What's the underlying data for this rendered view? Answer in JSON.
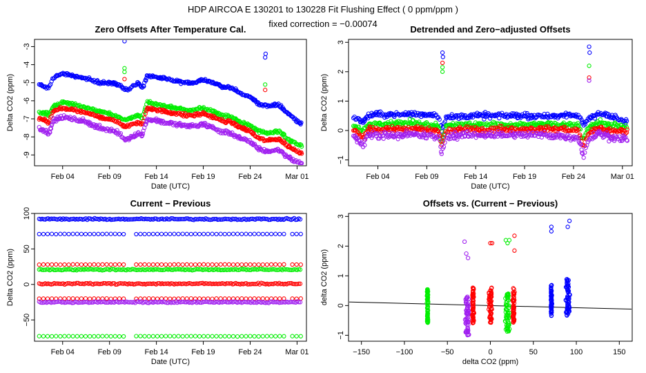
{
  "header": {
    "title": "HDP    AIRCOA E    130201 to 130228    Fit Flushing Effect ( 0 ppm/ppm )",
    "subtitle": "fixed correction = −0.00074"
  },
  "colors": {
    "blue": "#0000ff",
    "green": "#00ee00",
    "red": "#ff0000",
    "purple": "#a020f0",
    "fit_line": "#000000"
  },
  "chart_data": [
    {
      "type": "scatter",
      "title": "Zero Offsets After Temperature Cal.",
      "xlabel": "Date (UTC)",
      "ylabel": "Delta CO2 (ppm)",
      "xlim": [
        0,
        29
      ],
      "ylim": [
        -9.6,
        -2.6
      ],
      "x_ticks": [
        3,
        8,
        13,
        18,
        23,
        28
      ],
      "x_tick_labels": [
        "Feb 04",
        "Feb 09",
        "Feb 14",
        "Feb 19",
        "Feb 24",
        "Mar 01"
      ],
      "y_ticks": [
        -9,
        -8,
        -7,
        -6,
        -5,
        -4,
        -3
      ],
      "y_tick_labels": [
        "-9",
        "-8",
        "-7",
        "-6",
        "-5",
        "-4",
        "-3"
      ],
      "x_range": [
        0.5,
        28.5
      ],
      "series": [
        {
          "name": "blue",
          "color": "#0000ff",
          "spread": 0.1,
          "x": [
            0.5,
            1.5,
            2.0,
            3.0,
            4.0,
            5.0,
            6.0,
            7.0,
            8.5,
            9.1,
            9.5,
            10.0,
            11.0,
            11.5,
            12.0,
            13.0,
            14.0,
            15.0,
            16.0,
            17.0,
            18.0,
            19.0,
            20.0,
            21.0,
            22.0,
            23.0,
            24.0,
            25.0,
            26.0,
            27.0,
            28.0,
            28.5
          ],
          "y": [
            -5.1,
            -5.3,
            -4.7,
            -4.5,
            -4.6,
            -4.7,
            -4.85,
            -5.0,
            -5.05,
            -5.1,
            -5.3,
            -5.4,
            -5.0,
            -5.3,
            -4.6,
            -4.7,
            -4.8,
            -4.9,
            -5.0,
            -5.0,
            -4.8,
            -5.0,
            -5.2,
            -5.3,
            -5.6,
            -5.8,
            -6.2,
            -6.3,
            -6.2,
            -6.7,
            -7.1,
            -7.3
          ]
        },
        {
          "name": "green",
          "color": "#00ee00",
          "spread": 0.12,
          "x": [
            0.5,
            1.5,
            2.0,
            3.0,
            4.0,
            5.0,
            6.0,
            7.0,
            8.5,
            9.1,
            9.5,
            10.0,
            11.0,
            11.5,
            12.0,
            13.0,
            14.0,
            15.0,
            16.0,
            17.0,
            18.0,
            19.0,
            20.0,
            21.0,
            22.0,
            23.0,
            24.0,
            25.0,
            26.0,
            27.0,
            28.0,
            28.5
          ],
          "y": [
            -6.6,
            -6.8,
            -6.3,
            -6.1,
            -6.2,
            -6.3,
            -6.45,
            -6.6,
            -6.8,
            -6.9,
            -7.1,
            -7.0,
            -6.8,
            -6.9,
            -6.1,
            -6.2,
            -6.3,
            -6.4,
            -6.5,
            -6.5,
            -6.4,
            -6.6,
            -6.8,
            -6.9,
            -7.2,
            -7.4,
            -7.7,
            -7.8,
            -7.7,
            -8.1,
            -8.4,
            -8.5
          ]
        },
        {
          "name": "red",
          "color": "#ff0000",
          "spread": 0.12,
          "x": [
            0.5,
            1.5,
            2.0,
            3.0,
            4.0,
            5.0,
            6.0,
            7.0,
            8.5,
            9.1,
            9.5,
            10.0,
            11.0,
            11.5,
            12.0,
            13.0,
            14.0,
            15.0,
            16.0,
            17.0,
            18.0,
            19.0,
            20.0,
            21.0,
            22.0,
            23.0,
            24.0,
            25.0,
            26.0,
            27.0,
            28.0,
            28.5
          ],
          "y": [
            -7.0,
            -7.2,
            -6.6,
            -6.4,
            -6.5,
            -6.6,
            -6.75,
            -6.9,
            -7.1,
            -7.2,
            -7.4,
            -7.4,
            -7.2,
            -7.3,
            -6.4,
            -6.5,
            -6.6,
            -6.7,
            -6.8,
            -6.8,
            -6.7,
            -6.9,
            -7.1,
            -7.2,
            -7.5,
            -7.7,
            -8.1,
            -8.2,
            -8.1,
            -8.5,
            -8.8,
            -8.9
          ]
        },
        {
          "name": "purple",
          "color": "#a020f0",
          "spread": 0.15,
          "x": [
            0.5,
            1.5,
            2.0,
            3.0,
            4.0,
            5.0,
            6.0,
            7.0,
            8.5,
            9.1,
            9.5,
            10.0,
            11.0,
            11.5,
            12.0,
            13.0,
            14.0,
            15.0,
            16.0,
            17.0,
            18.0,
            19.0,
            20.0,
            21.0,
            22.0,
            23.0,
            24.0,
            25.0,
            26.0,
            27.0,
            28.0,
            28.5
          ],
          "y": [
            -7.5,
            -7.8,
            -7.1,
            -6.9,
            -7.0,
            -7.1,
            -7.3,
            -7.5,
            -7.7,
            -7.8,
            -8.1,
            -8.1,
            -7.8,
            -7.9,
            -7.0,
            -7.1,
            -7.2,
            -7.3,
            -7.4,
            -7.4,
            -7.3,
            -7.5,
            -7.7,
            -7.8,
            -8.1,
            -8.3,
            -8.7,
            -8.8,
            -8.7,
            -9.1,
            -9.4,
            -9.5
          ]
        }
      ],
      "outliers": [
        {
          "series": "blue",
          "x": [
            9.6,
            9.65,
            24.6,
            24.65
          ],
          "y": [
            -2.7,
            -2.5,
            -3.6,
            -3.4
          ]
        },
        {
          "series": "green",
          "x": [
            9.6,
            9.6,
            24.6
          ],
          "y": [
            -4.2,
            -4.4,
            -5.1
          ]
        },
        {
          "series": "red",
          "x": [
            9.6,
            24.6
          ],
          "y": [
            -4.8,
            -5.4
          ]
        }
      ]
    },
    {
      "type": "scatter",
      "title": "Detrended and Zero−adjusted Offsets",
      "xlabel": "Date (UTC)",
      "ylabel": "Delta CO2 (ppm)",
      "xlim": [
        0,
        29
      ],
      "ylim": [
        -1.2,
        3.1
      ],
      "x_ticks": [
        3,
        8,
        13,
        18,
        23,
        28
      ],
      "x_tick_labels": [
        "Feb 04",
        "Feb 09",
        "Feb 14",
        "Feb 19",
        "Feb 24",
        "Mar 01"
      ],
      "y_ticks": [
        -1,
        0,
        1,
        2,
        3
      ],
      "y_tick_labels": [
        "−1",
        "0",
        "1",
        "2",
        "3"
      ],
      "x_range": [
        0.5,
        28.5
      ],
      "series": [
        {
          "name": "blue",
          "color": "#0000ff",
          "spread": 0.12,
          "x": [
            0.5,
            1.5,
            2.0,
            3.0,
            5.0,
            7.0,
            8.5,
            9.2,
            9.5,
            10.0,
            12.0,
            14.0,
            16.0,
            18.0,
            20.0,
            22.0,
            23.5,
            24.0,
            24.5,
            25.5,
            26.5,
            28.5
          ],
          "y": [
            0.45,
            0.3,
            0.5,
            0.55,
            0.55,
            0.55,
            0.55,
            0.5,
            0.05,
            0.45,
            0.5,
            0.5,
            0.5,
            0.5,
            0.5,
            0.5,
            0.5,
            0.2,
            0.4,
            0.6,
            0.5,
            0.3
          ]
        },
        {
          "name": "green",
          "color": "#00ee00",
          "spread": 0.12,
          "x": [
            0.5,
            1.5,
            2.0,
            3.0,
            5.0,
            7.0,
            8.5,
            9.2,
            9.5,
            10.0,
            12.0,
            14.0,
            16.0,
            18.0,
            20.0,
            22.0,
            23.5,
            24.0,
            24.5,
            25.5,
            26.5,
            28.5
          ],
          "y": [
            0.15,
            0.0,
            0.2,
            0.25,
            0.25,
            0.25,
            0.2,
            0.15,
            -0.4,
            0.2,
            0.2,
            0.2,
            0.2,
            0.2,
            0.2,
            0.2,
            0.15,
            -0.3,
            0.1,
            0.25,
            0.2,
            0.1
          ]
        },
        {
          "name": "red",
          "color": "#ff0000",
          "spread": 0.12,
          "x": [
            0.5,
            1.5,
            2.0,
            3.0,
            5.0,
            7.0,
            8.5,
            9.2,
            9.5,
            10.0,
            12.0,
            14.0,
            16.0,
            18.0,
            20.0,
            22.0,
            23.5,
            24.0,
            24.5,
            25.5,
            26.5,
            28.5
          ],
          "y": [
            0.0,
            -0.25,
            0.05,
            0.05,
            0.05,
            0.05,
            0.0,
            0.0,
            -0.5,
            0.0,
            0.05,
            0.05,
            0.05,
            0.05,
            0.05,
            0.05,
            0.0,
            -0.6,
            -0.1,
            0.1,
            0.0,
            -0.05
          ]
        },
        {
          "name": "purple",
          "color": "#a020f0",
          "spread": 0.15,
          "x": [
            0.5,
            1.5,
            2.0,
            3.0,
            5.0,
            7.0,
            8.5,
            9.2,
            9.5,
            10.0,
            12.0,
            14.0,
            16.0,
            18.0,
            20.0,
            22.0,
            23.5,
            24.0,
            24.5,
            25.5,
            26.5,
            28.5
          ],
          "y": [
            -0.2,
            -0.5,
            -0.15,
            -0.15,
            -0.15,
            -0.15,
            -0.2,
            -0.2,
            -0.8,
            -0.2,
            -0.15,
            -0.15,
            -0.15,
            -0.15,
            -0.15,
            -0.2,
            -0.25,
            -0.9,
            -0.3,
            -0.1,
            -0.2,
            -0.3
          ]
        }
      ],
      "outliers": [
        {
          "series": "blue",
          "x": [
            9.6,
            9.65,
            24.6,
            24.65
          ],
          "y": [
            2.65,
            2.5,
            2.85,
            2.65
          ]
        },
        {
          "series": "green",
          "x": [
            9.6,
            9.6,
            24.6
          ],
          "y": [
            2.0,
            2.15,
            2.2
          ]
        },
        {
          "series": "red",
          "x": [
            9.6,
            24.6
          ],
          "y": [
            2.3,
            1.8
          ]
        },
        {
          "series": "purple",
          "x": [
            24.6
          ],
          "y": [
            1.7
          ]
        }
      ]
    },
    {
      "type": "scatter",
      "title": "Current − Previous",
      "xlabel": "Date (UTC)",
      "ylabel": "Delta CO2 (ppm)",
      "xlim": [
        0,
        29
      ],
      "ylim": [
        -80,
        100
      ],
      "x_ticks": [
        3,
        8,
        13,
        18,
        23,
        28
      ],
      "x_tick_labels": [
        "Feb 04",
        "Feb 09",
        "Feb 14",
        "Feb 19",
        "Feb 24",
        "Mar 01"
      ],
      "y_ticks": [
        -50,
        0,
        50,
        100
      ],
      "y_tick_labels": [
        "−50",
        "0",
        "50",
        "100"
      ],
      "x_range": [
        0.5,
        28.5
      ],
      "series": [
        {
          "name": "blue",
          "color": "#0000ff",
          "level": 92,
          "jitter": 1.5
        },
        {
          "name": "blue",
          "color": "#0000ff",
          "level": 71,
          "jitter": 0.3,
          "sparse": true
        },
        {
          "name": "red",
          "color": "#ff0000",
          "level": 28,
          "jitter": 0.3,
          "sparse": true
        },
        {
          "name": "green",
          "color": "#00ee00",
          "level": 21,
          "jitter": 1.5
        },
        {
          "name": "red",
          "color": "#ff0000",
          "level": 1,
          "jitter": 1.5
        },
        {
          "name": "red",
          "color": "#ff0000",
          "level": -20,
          "jitter": 0.3,
          "sparse": true
        },
        {
          "name": "purple",
          "color": "#a020f0",
          "level": -25,
          "jitter": 1.5
        },
        {
          "name": "green",
          "color": "#00ee00",
          "level": -73,
          "jitter": 0.3,
          "sparse": true
        }
      ]
    },
    {
      "type": "scatter",
      "title": "Offsets vs. (Current − Previous)",
      "xlabel": "delta CO2 (ppm)",
      "ylabel": "delta CO2 (ppm)",
      "xlim": [
        -165,
        165
      ],
      "ylim": [
        -1.2,
        3.1
      ],
      "x_ticks": [
        -150,
        -100,
        -50,
        0,
        50,
        100,
        150
      ],
      "x_tick_labels": [
        "−150",
        "−100",
        "−50",
        "0",
        "50",
        "100",
        "150"
      ],
      "y_ticks": [
        -1,
        0,
        1,
        2,
        3
      ],
      "y_tick_labels": [
        "−1",
        "0",
        "1",
        "2",
        "3"
      ],
      "fit_line": {
        "x": [
          -165,
          165
        ],
        "y": [
          0.12,
          -0.12
        ]
      },
      "clusters": [
        {
          "color": "#00ee00",
          "x": -73,
          "y_min": -0.6,
          "y_max": 0.55,
          "width": 2
        },
        {
          "color": "#a020f0",
          "x": -27,
          "y_min": -1.0,
          "y_max": 0.3,
          "width": 6
        },
        {
          "color": "#ff0000",
          "x": -20,
          "y_min": -0.6,
          "y_max": 0.6,
          "width": 3
        },
        {
          "color": "#ff0000",
          "x": 0,
          "y_min": -0.6,
          "y_max": 0.6,
          "width": 5
        },
        {
          "color": "#00ee00",
          "x": 20,
          "y_min": -0.9,
          "y_max": 0.55,
          "width": 7
        },
        {
          "color": "#ff0000",
          "x": 27,
          "y_min": -0.6,
          "y_max": 0.6,
          "width": 3
        },
        {
          "color": "#0000ff",
          "x": 71,
          "y_min": -0.4,
          "y_max": 0.7,
          "width": 2
        },
        {
          "color": "#0000ff",
          "x": 90,
          "y_min": -0.35,
          "y_max": 0.9,
          "width": 6
        }
      ],
      "outliers": [
        {
          "color": "#a020f0",
          "x": [
            -30,
            -28,
            -26
          ],
          "y": [
            2.15,
            1.75,
            1.6
          ]
        },
        {
          "color": "#ff0000",
          "x": [
            0,
            2,
            28,
            28
          ],
          "y": [
            2.1,
            2.1,
            2.35,
            1.85
          ]
        },
        {
          "color": "#00ee00",
          "x": [
            18,
            20,
            22
          ],
          "y": [
            2.2,
            2.1,
            2.2
          ]
        },
        {
          "color": "#0000ff",
          "x": [
            71,
            71,
            90,
            92
          ],
          "y": [
            2.65,
            2.5,
            2.65,
            2.85
          ]
        }
      ]
    }
  ]
}
